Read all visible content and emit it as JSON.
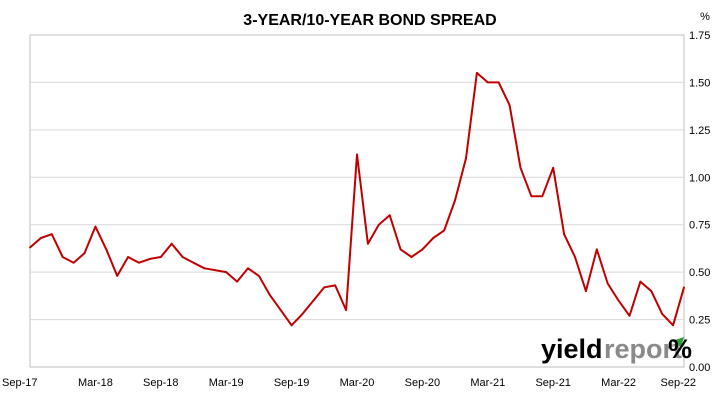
{
  "chart_data": {
    "type": "line",
    "title": "3-YEAR/10-YEAR BOND SPREAD",
    "ylabel_unit": "%",
    "xlabel": "",
    "ylim": [
      0.0,
      1.75
    ],
    "yticks": [
      "0.00",
      "0.25",
      "0.50",
      "0.75",
      "1.00",
      "1.25",
      "1.50",
      "1.75"
    ],
    "xticks": [
      "Sep-17",
      "Mar-18",
      "Sep-18",
      "Mar-19",
      "Sep-19",
      "Mar-20",
      "Sep-20",
      "Mar-21",
      "Sep-21",
      "Mar-22",
      "Sep-22"
    ],
    "grid": "horizontal",
    "legend": "none",
    "series": [
      {
        "color": "#c00000",
        "x": [
          "Sep-17",
          "Oct-17",
          "Nov-17",
          "Dec-17",
          "Jan-18",
          "Feb-18",
          "Mar-18",
          "Apr-18",
          "May-18",
          "Jun-18",
          "Jul-18",
          "Aug-18",
          "Sep-18",
          "Oct-18",
          "Nov-18",
          "Dec-18",
          "Jan-19",
          "Feb-19",
          "Mar-19",
          "Apr-19",
          "May-19",
          "Jun-19",
          "Jul-19",
          "Aug-19",
          "Sep-19",
          "Oct-19",
          "Nov-19",
          "Dec-19",
          "Jan-20",
          "Feb-20",
          "Mar-20",
          "Apr-20",
          "May-20",
          "Jun-20",
          "Jul-20",
          "Aug-20",
          "Sep-20",
          "Oct-20",
          "Nov-20",
          "Dec-20",
          "Jan-21",
          "Feb-21",
          "Mar-21",
          "Apr-21",
          "May-21",
          "Jun-21",
          "Jul-21",
          "Aug-21",
          "Sep-21",
          "Oct-21",
          "Nov-21",
          "Dec-21",
          "Jan-22",
          "Feb-22",
          "Mar-22",
          "Apr-22",
          "May-22",
          "Jun-22",
          "Jul-22",
          "Aug-22",
          "Sep-22"
        ],
        "values": [
          0.63,
          0.68,
          0.7,
          0.58,
          0.55,
          0.6,
          0.74,
          0.62,
          0.48,
          0.58,
          0.55,
          0.57,
          0.58,
          0.65,
          0.58,
          0.55,
          0.52,
          0.51,
          0.5,
          0.45,
          0.52,
          0.48,
          0.38,
          0.3,
          0.22,
          0.28,
          0.35,
          0.42,
          0.43,
          0.3,
          1.12,
          0.65,
          0.75,
          0.8,
          0.62,
          0.58,
          0.62,
          0.68,
          0.72,
          0.88,
          1.1,
          1.55,
          1.5,
          1.5,
          1.38,
          1.05,
          0.9,
          0.9,
          1.05,
          0.7,
          0.58,
          0.4,
          0.62,
          0.44,
          0.35,
          0.27,
          0.45,
          0.4,
          0.28,
          0.22,
          0.42
        ]
      }
    ]
  },
  "logo": {
    "text_dark": "yield",
    "text_grey": "report",
    "symbol": "%"
  }
}
